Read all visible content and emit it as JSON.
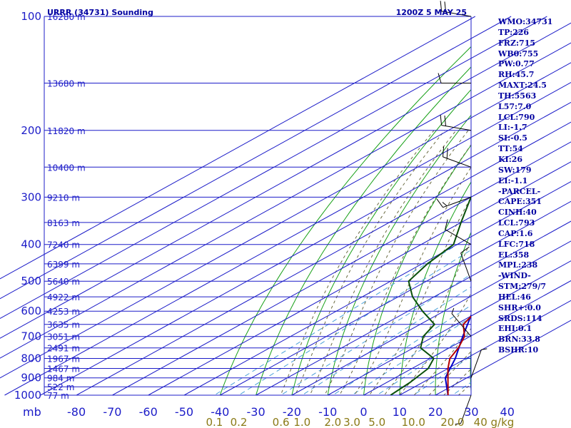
{
  "header": {
    "station": "URRR (34731) Sounding",
    "time": "1200Z  5 MAY 25"
  },
  "pressure_unit": "mb",
  "chart_data": {
    "type": "skew-t",
    "ylabel": "mb",
    "pressure_levels": [
      100,
      200,
      300,
      400,
      500,
      600,
      700,
      800,
      900,
      1000
    ],
    "temperature_ticks": [
      "-80",
      "-70",
      "-60",
      "-50",
      "-40",
      "-30",
      "-20",
      "-10",
      "0",
      "10",
      "20",
      "30",
      "40"
    ],
    "mixing_ratio_ticks": [
      "0.1",
      "0.2",
      "0.6",
      "1.0",
      "2.0",
      "3.0",
      "5.0",
      "10.0",
      "20.0",
      "40 g/kg"
    ],
    "height_labels": [
      {
        "p": 100,
        "label": "16280 m"
      },
      {
        "p": 150,
        "label": "13680 m"
      },
      {
        "p": 200,
        "label": "11820 m"
      },
      {
        "p": 250,
        "label": "10400 m"
      },
      {
        "p": 300,
        "label": "9210 m"
      },
      {
        "p": 350,
        "label": "8163 m"
      },
      {
        "p": 400,
        "label": "7240 m"
      },
      {
        "p": 450,
        "label": "6399 m"
      },
      {
        "p": 500,
        "label": "5640 m"
      },
      {
        "p": 550,
        "label": "4922 m"
      },
      {
        "p": 600,
        "label": "4253 m"
      },
      {
        "p": 650,
        "label": "3635 m"
      },
      {
        "p": 700,
        "label": "3051 m"
      },
      {
        "p": 750,
        "label": "2491 m"
      },
      {
        "p": 800,
        "label": "1967 m"
      },
      {
        "p": 850,
        "label": "1467 m"
      },
      {
        "p": 900,
        "label": "984 m"
      },
      {
        "p": 950,
        "label": "522 m"
      },
      {
        "p": 1000,
        "label": "77 m"
      }
    ],
    "temperature_profile": [
      [
        1000,
        23.5
      ],
      [
        925,
        17
      ],
      [
        850,
        10
      ],
      [
        800,
        5.5
      ],
      [
        750,
        2.5
      ],
      [
        700,
        -1.5
      ],
      [
        650,
        -8
      ],
      [
        600,
        -11
      ],
      [
        550,
        -15
      ],
      [
        500,
        -22
      ],
      [
        450,
        -30
      ],
      [
        400,
        -35
      ],
      [
        350,
        -38.5
      ],
      [
        300,
        -48
      ],
      [
        250,
        -56
      ],
      [
        230,
        -57
      ],
      [
        200,
        -54.5
      ],
      [
        180,
        -53
      ],
      [
        160,
        -50
      ],
      [
        150,
        -54
      ],
      [
        140,
        -56
      ],
      [
        100,
        -55.5
      ]
    ],
    "dewpoint_profile": [
      [
        1000,
        7.5
      ],
      [
        925,
        6.5
      ],
      [
        850,
        4.5
      ],
      [
        800,
        1
      ],
      [
        750,
        -8
      ],
      [
        700,
        -13
      ],
      [
        650,
        -16
      ],
      [
        600,
        -26
      ],
      [
        550,
        -36
      ],
      [
        500,
        -45
      ],
      [
        450,
        -48.5
      ],
      [
        400,
        -51
      ],
      [
        350,
        -60
      ],
      [
        300,
        -70
      ],
      [
        250,
        -75
      ],
      [
        200,
        -79
      ],
      [
        150,
        -80
      ],
      [
        100,
        -80
      ]
    ],
    "parcel_profile": [
      [
        1000,
        23.5
      ],
      [
        900,
        14
      ],
      [
        800,
        7
      ],
      [
        700,
        -2
      ],
      [
        600,
        -12
      ],
      [
        500,
        -23
      ],
      [
        400,
        -37
      ],
      [
        300,
        -55
      ],
      [
        250,
        -67
      ],
      [
        200,
        -81
      ],
      [
        180,
        -86
      ]
    ],
    "winds": [
      {
        "p": 100,
        "dir": 280,
        "kt": 20
      },
      {
        "p": 150,
        "dir": 270,
        "kt": 10
      },
      {
        "p": 200,
        "dir": 280,
        "kt": 20
      },
      {
        "p": 250,
        "dir": 290,
        "kt": 20
      },
      {
        "p": 300,
        "dir": 250,
        "kt": 15
      },
      {
        "p": 400,
        "dir": 300,
        "kt": 10
      },
      {
        "p": 500,
        "dir": 340,
        "kt": 10
      },
      {
        "p": 700,
        "dir": 320,
        "kt": 5
      },
      {
        "p": 900,
        "dir": 20,
        "kt": 5
      },
      {
        "p": 1000,
        "dir": 200,
        "kt": 5
      }
    ],
    "colors": {
      "frame": "#1c1cc8",
      "isotherm": "#1c1cc8",
      "dry_adiabat": "#18a018",
      "moist_adiabat": "#6a6a40",
      "mixing_ratio": "#4aa0d8",
      "temperature": "#b40000",
      "dewpoint": "#0a500a",
      "parcel": "#0000c8",
      "wind_barb": "#000000"
    }
  },
  "indices": [
    "WMO:34731",
    "TP:226",
    "FRZ:715",
    "WB0:755",
    "PW:0.77",
    "RH:45.7",
    "MAXT:24.5",
    "TH:5563",
    "L57:7.0",
    "LCL:790",
    "LI:-1.7",
    "SI:-0.5",
    "TT:54",
    "KI:26",
    "SW:179",
    "EI:-1.1",
    "-PARCEL-",
    "CAPE:351",
    "CINH:40",
    "LCL:793",
    "CAP:1.6",
    "LFC:718",
    "EL:358",
    "MPL:238",
    "-WIND-",
    "STM:279/7",
    "HEL:46",
    "SHR+:0.0",
    "SRDS:114",
    "EHI:0.1",
    "BRN:33.8",
    "BSHR:10"
  ]
}
